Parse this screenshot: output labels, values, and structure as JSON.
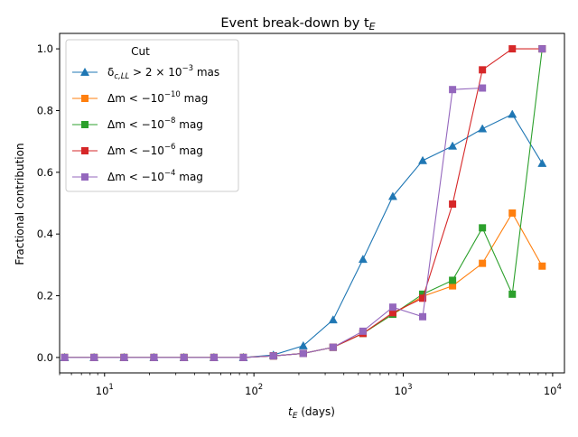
{
  "chart_data": {
    "type": "line",
    "title": "Event break-down by t",
    "title_sub": "E",
    "xlabel": "t",
    "xlabel_sub": "E",
    "xlabel_unit": " (days)",
    "ylabel": "Fractional contribution",
    "xscale": "log",
    "xlim": [
      5,
      12000
    ],
    "ylim": [
      -0.05,
      1.05
    ],
    "grid": false,
    "legend_title": "Cut",
    "legend_position": "top-left",
    "x": [
      5.4,
      8.5,
      13.5,
      21.4,
      34,
      54,
      85,
      135,
      214,
      339,
      537,
      851,
      1349,
      2138,
      3388,
      5370,
      8511
    ],
    "series": [
      {
        "name": "δc,LL > 2×10⁻³ mas",
        "legend": {
          "pre": "δ",
          "sub": "c,LL",
          "mid": " > 2 × 10",
          "sup": "−3",
          "post": " mas"
        },
        "marker": "triangle",
        "color": "#1f77b4",
        "values": [
          0,
          0,
          0,
          0,
          0,
          0,
          0,
          0.008,
          0.038,
          0.122,
          0.318,
          0.522,
          0.638,
          0.685,
          0.741,
          0.788,
          0.629
        ]
      },
      {
        "name": "Δm < −10⁻¹⁰ mag",
        "legend": {
          "pre": "Δm < −10",
          "sub": "",
          "mid": "",
          "sup": "−10",
          "post": " mag"
        },
        "marker": "square",
        "color": "#ff7f0e",
        "values": [
          0,
          0,
          0,
          0,
          0,
          0,
          0,
          0.005,
          0.013,
          0.033,
          0.078,
          0.14,
          0.198,
          0.232,
          0.305,
          0.468,
          0.296
        ]
      },
      {
        "name": "Δm < −10⁻⁸ mag",
        "legend": {
          "pre": "Δm < −10",
          "sub": "",
          "mid": "",
          "sup": "−8",
          "post": " mag"
        },
        "marker": "square",
        "color": "#2ca02c",
        "values": [
          0,
          0,
          0,
          0,
          0,
          0,
          0,
          0.005,
          0.013,
          0.033,
          0.078,
          0.14,
          0.205,
          0.25,
          0.42,
          0.205,
          1.0
        ]
      },
      {
        "name": "Δm < −10⁻⁶ mag",
        "legend": {
          "pre": "Δm < −10",
          "sub": "",
          "mid": "",
          "sup": "−6",
          "post": " mag"
        },
        "marker": "square",
        "color": "#d62728",
        "values": [
          0,
          0,
          0,
          0,
          0,
          0,
          0,
          0.005,
          0.013,
          0.033,
          0.078,
          0.145,
          0.192,
          0.497,
          0.932,
          1.0,
          1.0
        ]
      },
      {
        "name": "Δm < −10⁻⁴ mag",
        "legend": {
          "pre": "Δm < −10",
          "sub": "",
          "mid": "",
          "sup": "−4",
          "post": " mag"
        },
        "marker": "square",
        "color": "#9467bd",
        "values": [
          0,
          0,
          0,
          0,
          0,
          0,
          0,
          0.005,
          0.013,
          0.033,
          0.085,
          0.163,
          0.132,
          0.868,
          0.873,
          null,
          1.0
        ]
      }
    ],
    "x_ticks_major": [
      {
        "value": 10,
        "base": "10",
        "exp": "1"
      },
      {
        "value": 100,
        "base": "10",
        "exp": "2"
      },
      {
        "value": 1000,
        "base": "10",
        "exp": "3"
      },
      {
        "value": 10000,
        "base": "10",
        "exp": "4"
      }
    ],
    "y_ticks": [
      {
        "value": 0.0,
        "label": "0.0"
      },
      {
        "value": 0.2,
        "label": "0.2"
      },
      {
        "value": 0.4,
        "label": "0.4"
      },
      {
        "value": 0.6,
        "label": "0.6"
      },
      {
        "value": 0.8,
        "label": "0.8"
      },
      {
        "value": 1.0,
        "label": "1.0"
      }
    ]
  }
}
